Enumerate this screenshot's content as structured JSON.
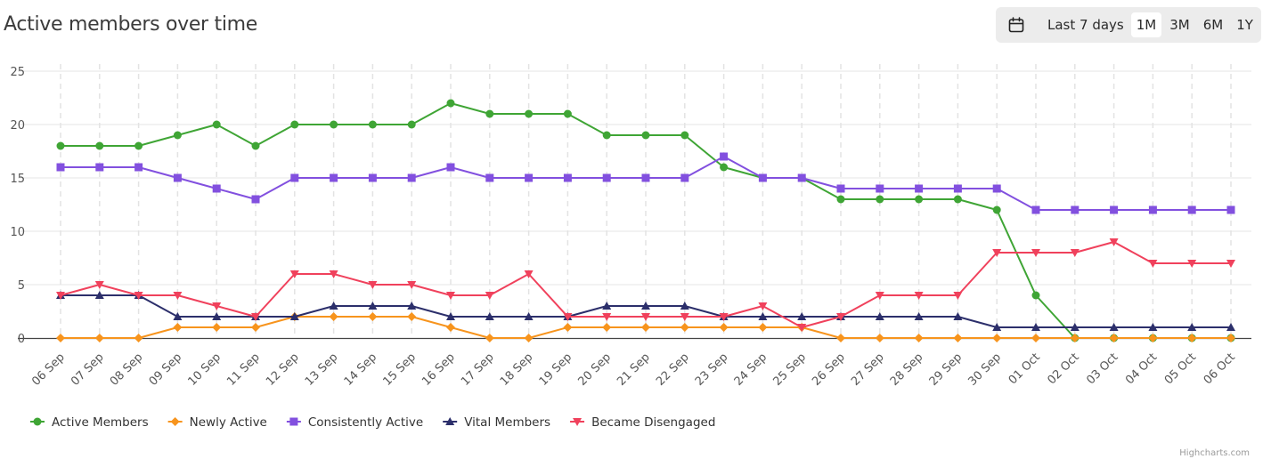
{
  "title": "Active members over time",
  "range_selector": {
    "label": "Last 7 days",
    "buttons": [
      "1M",
      "3M",
      "6M",
      "1Y"
    ],
    "selected": "1M"
  },
  "credit": "Highcharts.com",
  "chart_data": {
    "type": "line",
    "categories": [
      "06 Sep",
      "07 Sep",
      "08 Sep",
      "09 Sep",
      "10 Sep",
      "11 Sep",
      "12 Sep",
      "13 Sep",
      "14 Sep",
      "15 Sep",
      "16 Sep",
      "17 Sep",
      "18 Sep",
      "19 Sep",
      "20 Sep",
      "21 Sep",
      "22 Sep",
      "23 Sep",
      "24 Sep",
      "25 Sep",
      "26 Sep",
      "27 Sep",
      "28 Sep",
      "29 Sep",
      "30 Sep",
      "01 Oct",
      "02 Oct",
      "03 Oct",
      "04 Oct",
      "05 Oct",
      "06 Oct"
    ],
    "ylim": [
      0,
      25
    ],
    "yticks": [
      0,
      5,
      10,
      15,
      20,
      25
    ],
    "grid": true,
    "legend_position": "bottom-left",
    "series": [
      {
        "name": "Active Members",
        "color": "#3fa535",
        "marker": "circle",
        "values": [
          18,
          18,
          18,
          19,
          20,
          18,
          20,
          20,
          20,
          20,
          22,
          21,
          21,
          21,
          19,
          19,
          19,
          16,
          15,
          15,
          13,
          13,
          13,
          13,
          12,
          4,
          0,
          0,
          0,
          0,
          0
        ]
      },
      {
        "name": "Newly Active",
        "color": "#f7941d",
        "marker": "diamond",
        "values": [
          0,
          0,
          0,
          1,
          1,
          1,
          2,
          2,
          2,
          2,
          1,
          0,
          0,
          1,
          1,
          1,
          1,
          1,
          1,
          1,
          0,
          0,
          0,
          0,
          0,
          0,
          0,
          0,
          0,
          0,
          0
        ]
      },
      {
        "name": "Consistently Active",
        "color": "#8250df",
        "marker": "square",
        "values": [
          16,
          16,
          16,
          15,
          14,
          13,
          15,
          15,
          15,
          15,
          16,
          15,
          15,
          15,
          15,
          15,
          15,
          17,
          15,
          15,
          14,
          14,
          14,
          14,
          14,
          12,
          12,
          12,
          12,
          12,
          12
        ]
      },
      {
        "name": "Vital Members",
        "color": "#2c2f6b",
        "marker": "triangle",
        "values": [
          4,
          4,
          4,
          2,
          2,
          2,
          2,
          3,
          3,
          3,
          2,
          2,
          2,
          2,
          3,
          3,
          3,
          2,
          2,
          2,
          2,
          2,
          2,
          2,
          1,
          1,
          1,
          1,
          1,
          1,
          1
        ]
      },
      {
        "name": "Became Disengaged",
        "color": "#f0415c",
        "marker": "triangle-down",
        "values": [
          4,
          5,
          4,
          4,
          3,
          2,
          6,
          6,
          5,
          5,
          4,
          4,
          6,
          2,
          2,
          2,
          2,
          2,
          3,
          1,
          2,
          4,
          4,
          4,
          8,
          8,
          8,
          9,
          7,
          7,
          7
        ]
      }
    ]
  }
}
